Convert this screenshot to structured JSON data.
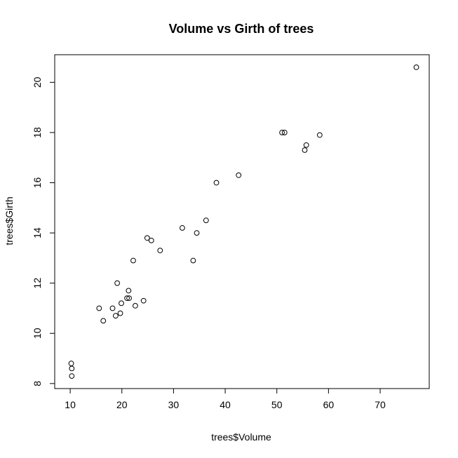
{
  "chart_data": {
    "type": "scatter",
    "title": "Volume vs Girth of trees",
    "xlabel": "trees$Volume",
    "ylabel": "trees$Girth",
    "xlim": [
      7.0,
      79.5
    ],
    "ylim": [
      7.8,
      21.1
    ],
    "xticks": [
      10,
      20,
      30,
      40,
      50,
      60,
      70
    ],
    "yticks": [
      8,
      10,
      12,
      14,
      16,
      18,
      20
    ],
    "grid": false,
    "points": [
      {
        "x": 10.3,
        "y": 8.3
      },
      {
        "x": 10.3,
        "y": 8.6
      },
      {
        "x": 10.2,
        "y": 8.8
      },
      {
        "x": 16.4,
        "y": 10.5
      },
      {
        "x": 18.8,
        "y": 10.7
      },
      {
        "x": 19.7,
        "y": 10.8
      },
      {
        "x": 15.6,
        "y": 11.0
      },
      {
        "x": 18.2,
        "y": 11.0
      },
      {
        "x": 22.6,
        "y": 11.1
      },
      {
        "x": 19.9,
        "y": 11.2
      },
      {
        "x": 24.2,
        "y": 11.3
      },
      {
        "x": 21.0,
        "y": 11.4
      },
      {
        "x": 21.4,
        "y": 11.4
      },
      {
        "x": 21.3,
        "y": 11.7
      },
      {
        "x": 19.1,
        "y": 12.0
      },
      {
        "x": 22.2,
        "y": 12.9
      },
      {
        "x": 33.8,
        "y": 12.9
      },
      {
        "x": 27.4,
        "y": 13.3
      },
      {
        "x": 25.7,
        "y": 13.7
      },
      {
        "x": 24.9,
        "y": 13.8
      },
      {
        "x": 34.5,
        "y": 14.0
      },
      {
        "x": 31.7,
        "y": 14.2
      },
      {
        "x": 36.3,
        "y": 14.5
      },
      {
        "x": 38.3,
        "y": 16.0
      },
      {
        "x": 42.6,
        "y": 16.3
      },
      {
        "x": 55.4,
        "y": 17.3
      },
      {
        "x": 55.7,
        "y": 17.5
      },
      {
        "x": 58.3,
        "y": 17.9
      },
      {
        "x": 51.5,
        "y": 18.0
      },
      {
        "x": 51.0,
        "y": 18.0
      },
      {
        "x": 77.0,
        "y": 20.6
      }
    ]
  }
}
